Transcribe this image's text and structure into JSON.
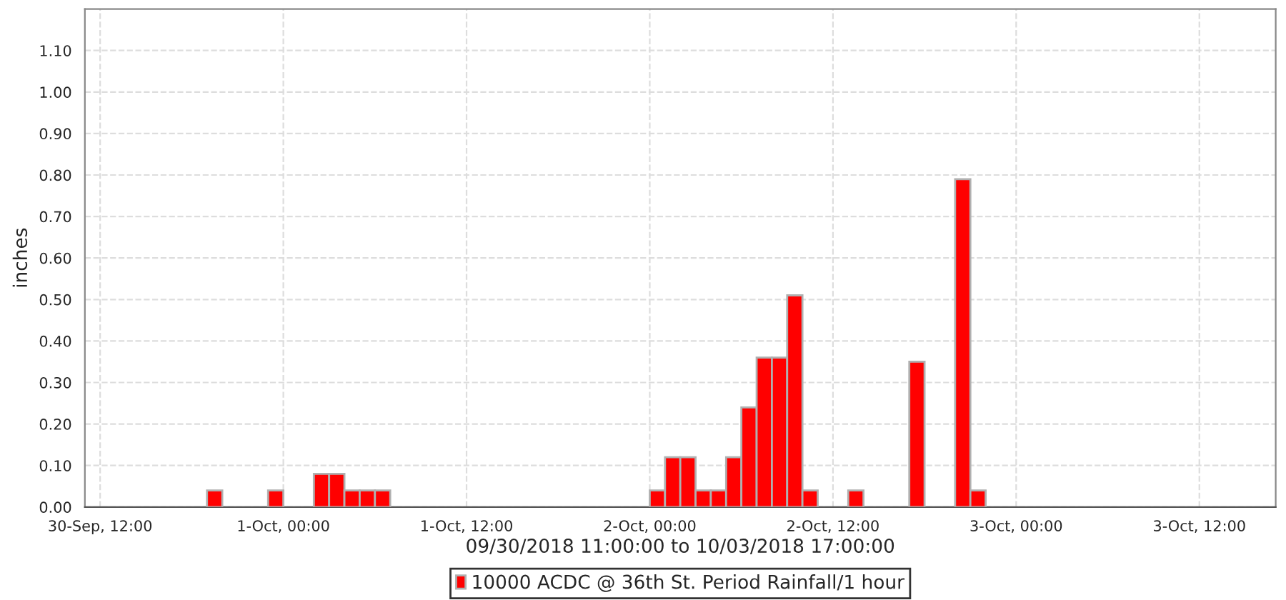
{
  "chart_data": {
    "type": "bar",
    "xlabel": "09/30/2018 11:00:00 to 10/03/2018 17:00:00",
    "ylabel": "inches",
    "x": [
      "2018-09-30T19:30",
      "2018-09-30T23:30",
      "2018-10-01T02:30",
      "2018-10-01T03:30",
      "2018-10-01T04:30",
      "2018-10-01T05:30",
      "2018-10-01T06:30",
      "2018-10-02T00:30",
      "2018-10-02T01:30",
      "2018-10-02T02:30",
      "2018-10-02T03:30",
      "2018-10-02T04:30",
      "2018-10-02T05:30",
      "2018-10-02T06:30",
      "2018-10-02T07:30",
      "2018-10-02T08:30",
      "2018-10-02T09:30",
      "2018-10-02T10:30",
      "2018-10-02T13:30",
      "2018-10-02T17:30",
      "2018-10-02T20:30",
      "2018-10-02T21:30"
    ],
    "series": [
      {
        "name": "10000 ACDC @ 36th St. Period Rainfall/1 hour",
        "color": "#ff0000",
        "values": [
          0.04,
          0.04,
          0.08,
          0.08,
          0.04,
          0.04,
          0.04,
          0.04,
          0.12,
          0.12,
          0.04,
          0.04,
          0.12,
          0.24,
          0.36,
          0.36,
          0.51,
          0.04,
          0.04,
          0.35,
          0.79,
          0.04
        ]
      }
    ],
    "xlim": [
      "2018-09-30T11:00",
      "2018-10-03T17:00"
    ],
    "xticks": [
      {
        "value": "2018-09-30T12:00",
        "label": "30-Sep, 12:00"
      },
      {
        "value": "2018-10-01T00:00",
        "label": "1-Oct, 00:00"
      },
      {
        "value": "2018-10-01T12:00",
        "label": "1-Oct, 12:00"
      },
      {
        "value": "2018-10-02T00:00",
        "label": "2-Oct, 00:00"
      },
      {
        "value": "2018-10-02T12:00",
        "label": "2-Oct, 12:00"
      },
      {
        "value": "2018-10-03T00:00",
        "label": "3-Oct, 00:00"
      },
      {
        "value": "2018-10-03T12:00",
        "label": "3-Oct, 12:00"
      }
    ],
    "ylim": [
      0,
      1.2
    ],
    "yticks": [
      {
        "value": 0,
        "label": "0.00"
      },
      {
        "value": 0.1,
        "label": "0.10"
      },
      {
        "value": 0.2,
        "label": "0.20"
      },
      {
        "value": 0.3,
        "label": "0.30"
      },
      {
        "value": 0.4,
        "label": "0.40"
      },
      {
        "value": 0.5,
        "label": "0.50"
      },
      {
        "value": 0.6,
        "label": "0.60"
      },
      {
        "value": 0.7,
        "label": "0.70"
      },
      {
        "value": 0.8,
        "label": "0.80"
      },
      {
        "value": 0.9,
        "label": "0.90"
      },
      {
        "value": 1.0,
        "label": "1.00"
      },
      {
        "value": 1.1,
        "label": "1.10"
      }
    ],
    "grid": true,
    "legend": "bottom"
  }
}
